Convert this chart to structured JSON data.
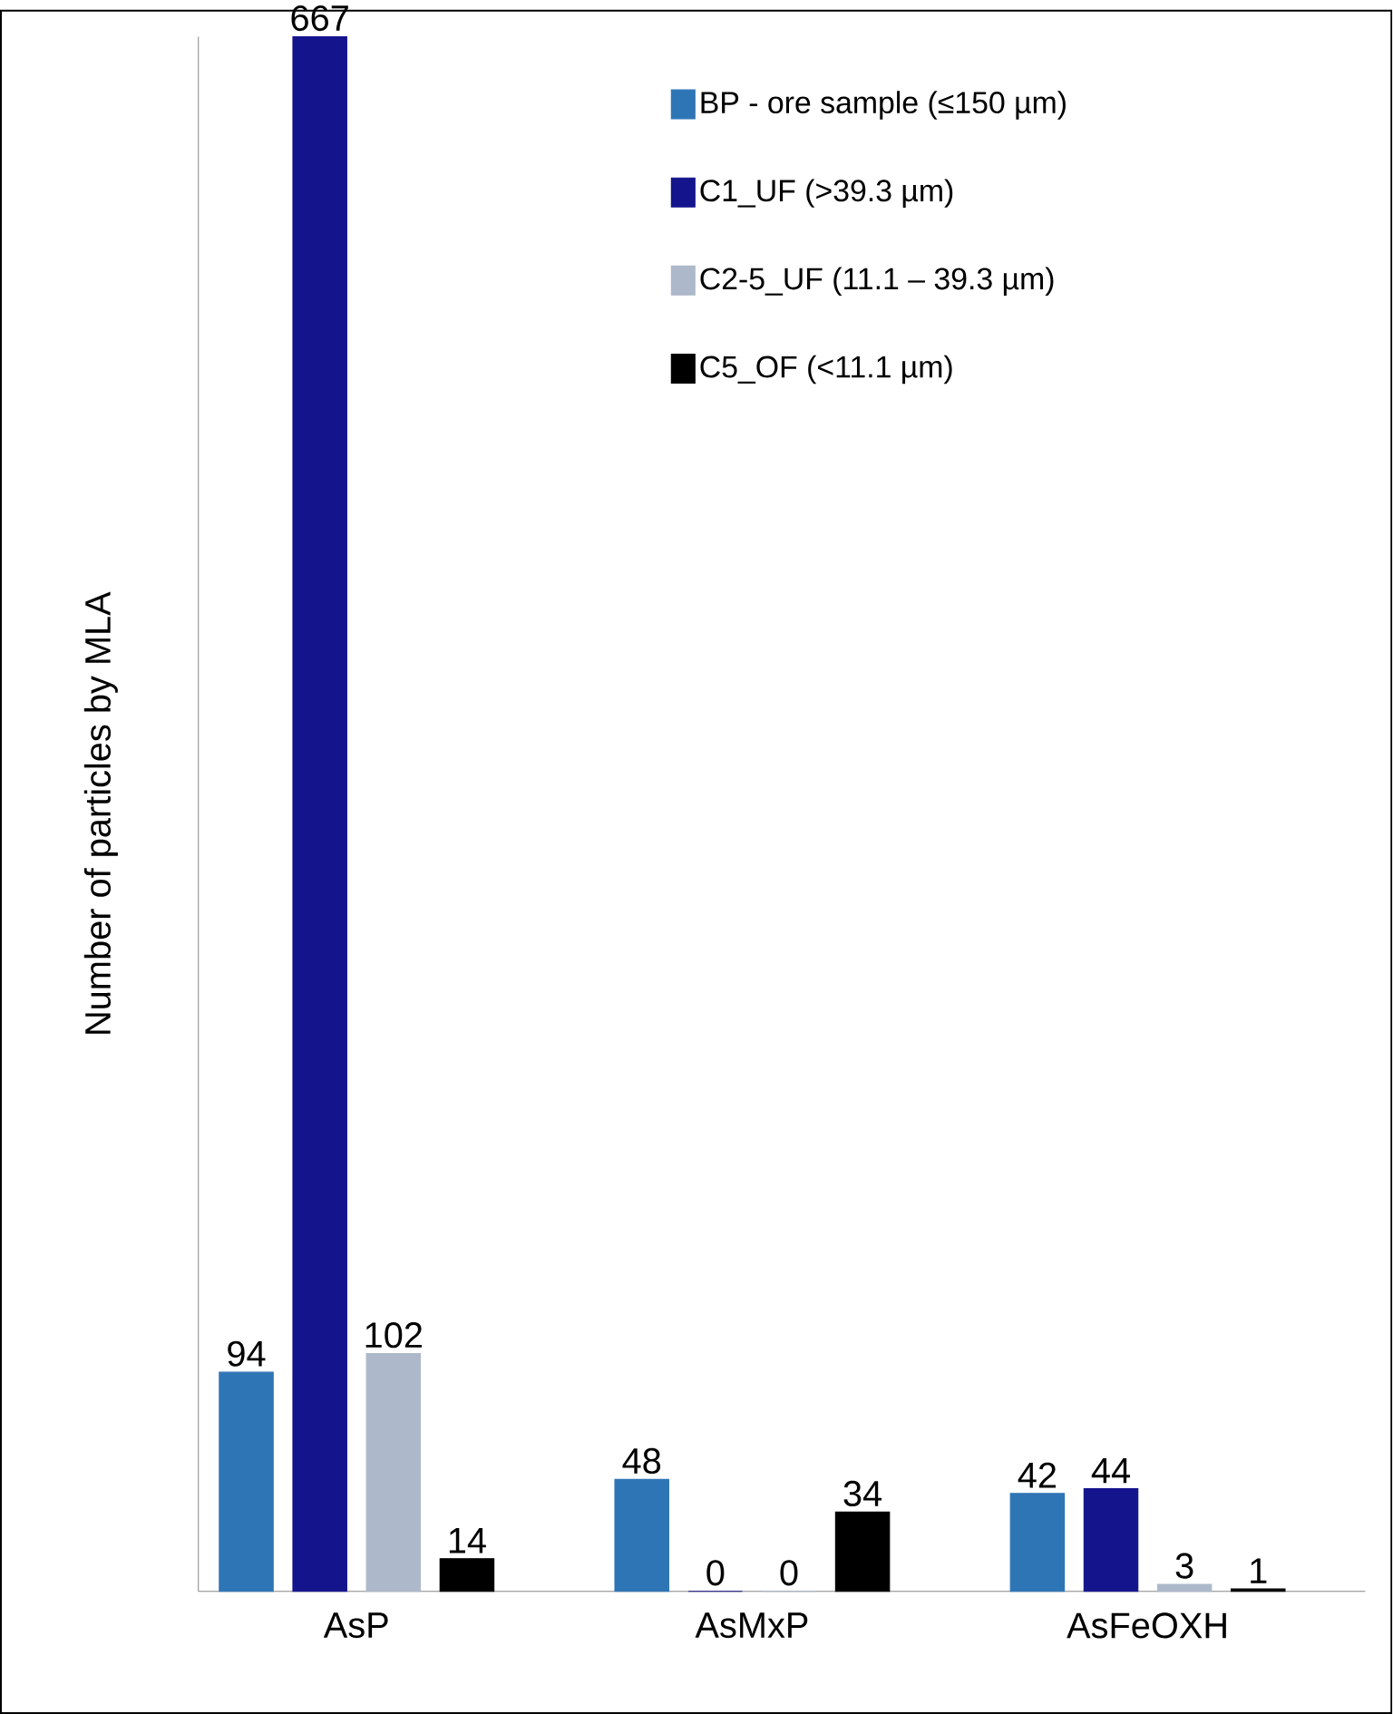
{
  "chart_data": {
    "type": "bar",
    "ylabel": "Number of particles by MLA",
    "categories": [
      "AsP",
      "AsMxP",
      "AsFeOXH"
    ],
    "series": [
      {
        "name": "BP - ore sample (≤150 µm)",
        "color": "#2e75b6",
        "values": [
          94,
          48,
          42
        ]
      },
      {
        "name": "C1_UF (>39.3 µm)",
        "color": "#14148c",
        "values": [
          667,
          0,
          44
        ]
      },
      {
        "name": "C2-5_UF (11.1 – 39.3 µm)",
        "color": "#adb9ca",
        "values": [
          102,
          0,
          3
        ]
      },
      {
        "name": "C5_OF (<11.1 µm)",
        "color": "#000000",
        "values": [
          14,
          34,
          1
        ]
      }
    ],
    "data_labels": true,
    "legend": "top right"
  }
}
